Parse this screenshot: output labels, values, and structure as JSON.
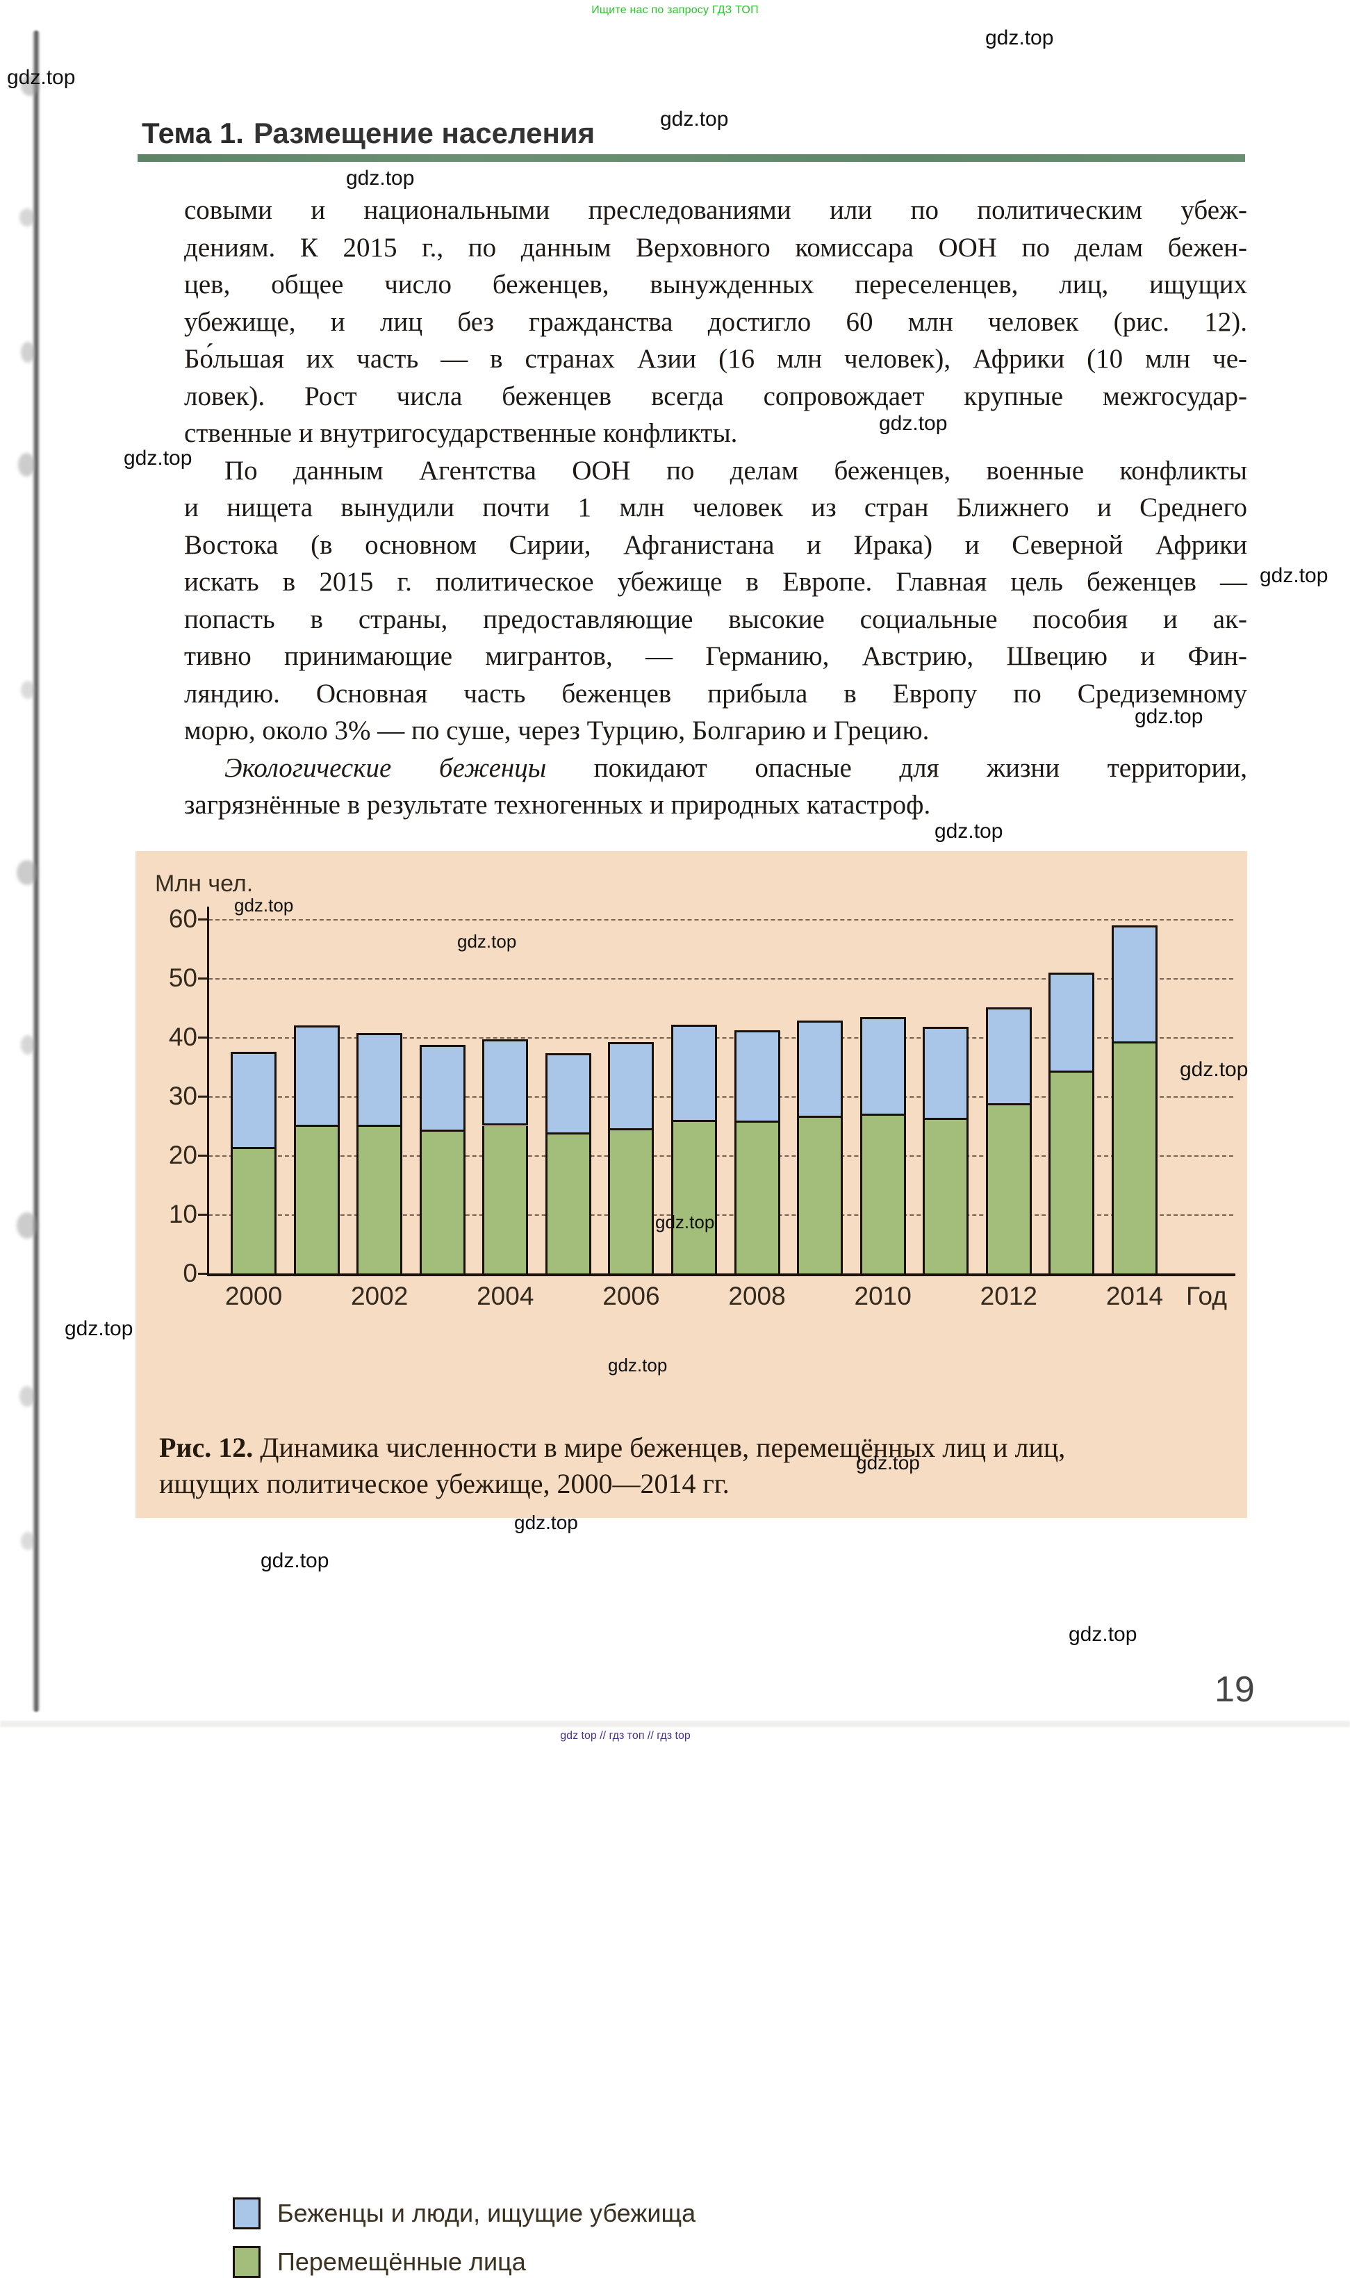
{
  "page": {
    "banner": "Ищите нас по запросу ГДЗ ТОП",
    "watermark": "gdz.top",
    "page_number": "19",
    "footer": "gdz top  //  гдз топ  //  гдз top"
  },
  "header": {
    "topic_label": "Тема 1.",
    "topic_title": "Размещение населения"
  },
  "article": {
    "paragraphs": [
      {
        "indent": false,
        "lines": [
          [
            {
              "t": "совыми и национальными преследованиями или по политическим убеж-"
            }
          ],
          [
            {
              "t": "дениям. К 2015 г., по данным Верховного комиссара ООН по делам бежен-"
            }
          ],
          [
            {
              "t": "цев, общее число беженцев, вынужденных переселенцев, лиц, ищущих"
            }
          ],
          [
            {
              "t": "убежище, и лиц без гражданства достигло 60 млн человек (рис. 12)."
            }
          ],
          [
            {
              "t": "Бо́льшая их часть — в странах Азии (16 млн человек), Африки (10 млн че-"
            }
          ],
          [
            {
              "t": "ловек). Рост числа беженцев всегда сопровождает крупные межгосудар-"
            }
          ],
          [
            {
              "t": "ственные и внутригосударственные конфликты."
            }
          ]
        ]
      },
      {
        "indent": true,
        "lines": [
          [
            {
              "t": "По данным Агентства ООН по делам беженцев, военные конфликты"
            }
          ],
          [
            {
              "t": "и нищета вынудили почти 1 млн человек из стран Ближнего и Среднего"
            }
          ],
          [
            {
              "t": "Востока (в основном Сирии, Афганистана и Ирака) и Северной Африки"
            }
          ],
          [
            {
              "t": "искать в 2015 г. политическое убежище в Европе. Главная цель беженцев —"
            }
          ],
          [
            {
              "t": "попасть в страны, предоставляющие высокие социальные пособия и ак-"
            }
          ],
          [
            {
              "t": "тивно принимающие мигрантов, — Германию, Австрию, Швецию и Фин-"
            }
          ],
          [
            {
              "t": "ляндию. Основная часть беженцев прибыла в Европу по Средиземному"
            }
          ],
          [
            {
              "t": "морю, около 3% — по суше, через Турцию, Болгарию и Грецию."
            }
          ]
        ]
      },
      {
        "indent": true,
        "lines": [
          [
            {
              "t": "Экологические беженцы",
              "i": true
            },
            {
              "t": " покидают опасные для жизни территории,"
            }
          ],
          [
            {
              "t": "загрязнённые в результате техногенных и природных катастроф."
            }
          ]
        ]
      }
    ]
  },
  "figure": {
    "caption_lines": [
      [
        {
          "t": "Рис. 12.",
          "b": true
        },
        {
          "t": " Динамика численности в мире беженцев, перемещённых лиц и лиц,"
        }
      ],
      [
        {
          "t": "ищущих политическое убежище, 2000—2014 гг."
        }
      ]
    ]
  },
  "chart_data": {
    "type": "bar",
    "stacked": true,
    "title": "Динамика численности в мире беженцев, перемещённых лиц и лиц, ищущих политическое убежище, 2000—2014 гг.",
    "ylabel": "Млн чел.",
    "xlabel": "Год",
    "ylim": [
      0,
      60
    ],
    "yticks": [
      0,
      10,
      20,
      30,
      40,
      50,
      60
    ],
    "grid": "horizontal-dashed",
    "background": "#f5dcc2",
    "legend_position": "bottom-left",
    "categories": [
      "2000",
      "2001",
      "2002",
      "2003",
      "2004",
      "2005",
      "2006",
      "2007",
      "2008",
      "2009",
      "2010",
      "2011",
      "2012",
      "2013",
      "2014"
    ],
    "x_tick_labels": [
      "2000",
      "2002",
      "2004",
      "2006",
      "2008",
      "2010",
      "2012",
      "2014"
    ],
    "series": [
      {
        "name": "Беженцы и люди, ищущие убежища",
        "color": "#a9c6e8",
        "stack_position": "top",
        "values": [
          16.4,
          17.2,
          15.9,
          14.7,
          14.6,
          13.8,
          15.0,
          16.5,
          15.7,
          16.4,
          16.7,
          15.8,
          16.6,
          17.0,
          20.1
        ]
      },
      {
        "name": "Перемещённые лица",
        "color": "#a3bd7b",
        "stack_position": "bottom",
        "values": [
          21.1,
          24.8,
          24.8,
          24.0,
          25.0,
          23.5,
          24.2,
          25.6,
          25.5,
          26.4,
          26.7,
          26.0,
          28.5,
          34.0,
          38.9
        ]
      }
    ],
    "totals": [
      37.5,
      42.0,
      40.7,
      38.7,
      39.6,
      37.3,
      39.2,
      42.1,
      41.2,
      42.8,
      43.4,
      41.8,
      45.1,
      51.0,
      59.0
    ]
  }
}
